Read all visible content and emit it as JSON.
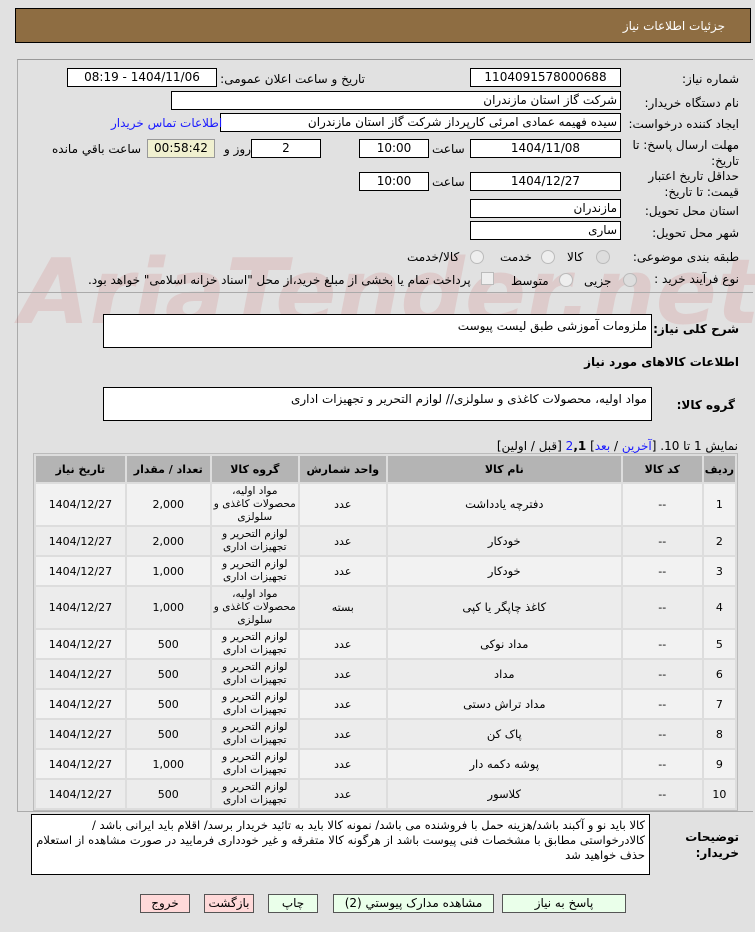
{
  "header": {
    "title": "جزئیات اطلاعات نیاز"
  },
  "watermark": "AriaTender.net",
  "form": {
    "need_number_label": "شماره نیاز:",
    "need_number": "1104091578000688",
    "announce_label": "تاریخ و ساعت اعلان عمومی:",
    "announce_value": "1404/11/06 - 08:19",
    "buyer_label": "نام دستگاه خریدار:",
    "buyer_value": "شرکت گاز استان مازندران",
    "creator_label": "ایجاد کننده درخواست:",
    "creator_value": "سیده فهیمه عمادی امرئی کارپرداز شرکت گاز استان مازندران",
    "contact_link": "اطلاعات تماس خریدار",
    "deadline_label": "مهلت ارسال پاسخ: تا تاریخ:",
    "deadline_date": "1404/11/08",
    "time_label": "ساعت",
    "deadline_time": "10:00",
    "days": "2",
    "days_label": "روز و",
    "remaining": "00:58:42",
    "remaining_label": "ساعت باقي مانده",
    "validity_label": "حداقل تاریخ اعتبار قیمت: تا تاریخ:",
    "validity_date": "1404/12/27",
    "validity_time": "10:00",
    "province_label": "استان محل تحویل:",
    "province": "مازندران",
    "city_label": "شهر محل تحویل:",
    "city": "ساری",
    "category_label": "طبقه بندی موضوعی:",
    "category_options": [
      "کالا",
      "خدمت",
      "کالا/خدمت"
    ],
    "category_selected": "کالا",
    "process_label": "نوع فرآیند خرید :",
    "process_options": [
      "جزیی",
      "متوسط"
    ],
    "process_selected": "جزیی",
    "payment_note": "پرداخت تمام یا بخشی از مبلغ خرید،از محل \"اسناد خزانه اسلامی\" خواهد بود.",
    "description_label": "شرح کلی نیاز:",
    "description": "ملزومات آموزشی طبق لیست پیوست",
    "goods_info_title": "اطلاعات کالاهای مورد نیاز",
    "goods_group_label": "گروه کالا:",
    "goods_group": "مواد اولیه، محصولات کاغذی و سلولزی// لوازم التحریر و تجهیزات اداری"
  },
  "pagination": {
    "text": "نمایش 1 تا 10.",
    "open": "[",
    "last": "آخرین",
    "sep": " / ",
    "next": "بعد",
    "close": "]",
    "page2": "2",
    "page1": ",1",
    "prev_first": "[قبل / اولین]"
  },
  "table": {
    "headers": [
      "ردیف",
      "کد کالا",
      "نام کالا",
      "واحد شمارش",
      "گروه کالا",
      "تعداد / مقدار",
      "تاریخ نیاز"
    ],
    "rows": [
      [
        "1",
        "--",
        "دفترچه يادداشت",
        "عدد",
        "مواد اولیه، محصولات کاغذی و سلولزی",
        "2,000",
        "1404/12/27"
      ],
      [
        "2",
        "--",
        "خودکار",
        "عدد",
        "لوازم التحریر و تجهیزات اداری",
        "2,000",
        "1404/12/27"
      ],
      [
        "3",
        "--",
        "خودکار",
        "عدد",
        "لوازم التحریر و تجهیزات اداری",
        "1,000",
        "1404/12/27"
      ],
      [
        "4",
        "--",
        "کاغذ چاپگر یا کپی",
        "بسته",
        "مواد اولیه، محصولات کاغذی و سلولزی",
        "1,000",
        "1404/12/27"
      ],
      [
        "5",
        "--",
        "مداد نوکی",
        "عدد",
        "لوازم التحریر و تجهیزات اداری",
        "500",
        "1404/12/27"
      ],
      [
        "6",
        "--",
        "مداد",
        "عدد",
        "لوازم التحریر و تجهیزات اداری",
        "500",
        "1404/12/27"
      ],
      [
        "7",
        "--",
        "مداد تراش دستی",
        "عدد",
        "لوازم التحریر و تجهیزات اداری",
        "500",
        "1404/12/27"
      ],
      [
        "8",
        "--",
        "پاک کن",
        "عدد",
        "لوازم التحریر و تجهیزات اداری",
        "500",
        "1404/12/27"
      ],
      [
        "9",
        "--",
        "پوشه دکمه دار",
        "عدد",
        "لوازم التحریر و تجهیزات اداری",
        "1,000",
        "1404/12/27"
      ],
      [
        "10",
        "--",
        "کلاسور",
        "عدد",
        "لوازم التحریر و تجهیزات اداری",
        "500",
        "1404/12/27"
      ]
    ]
  },
  "notes": {
    "label": "توضیحات خریدار:",
    "text": "کالا باید نو و آکبند باشد/هزینه حمل با فروشنده می باشد/ نمونه کالا باید به تائید خریدار برسد/ اقلام باید ایرانی باشد / کالادرخواستی مطابق با مشخصات فنی پیوست باشد از هرگونه کالا متفرقه و غیر خودداری فرمایید در صورت مشاهده از استعلام حذف خواهید شد"
  },
  "buttons": {
    "reply": "پاسخ به نیاز",
    "attachments": "مشاهده مدارک پیوستي (2)",
    "print": "چاپ",
    "back": "بازگشت",
    "exit": "خروج"
  }
}
